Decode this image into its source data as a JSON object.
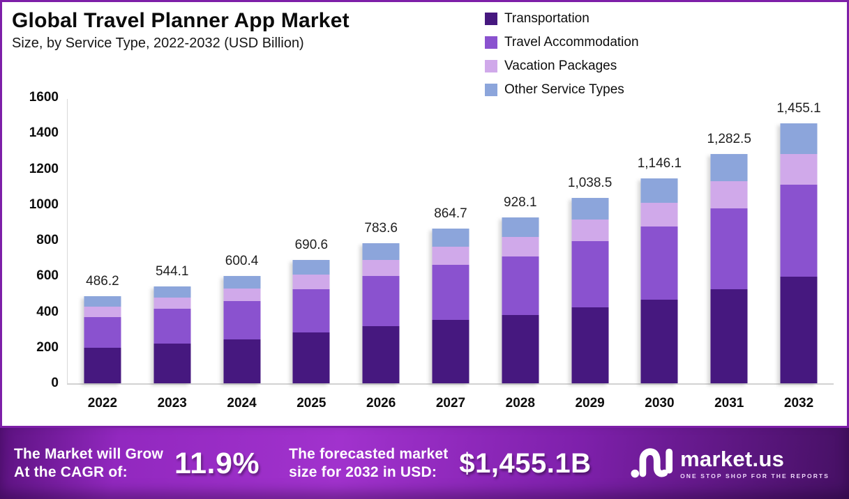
{
  "title": "Global Travel Planner App Market",
  "subtitle": "Size, by Service Type, 2022-2032 (USD Billion)",
  "legend": [
    {
      "label": "Transportation",
      "color": "#46187f"
    },
    {
      "label": "Travel Accommodation",
      "color": "#8a52cf"
    },
    {
      "label": "Vacation Packages",
      "color": "#d0a9ea"
    },
    {
      "label": "Other Service Types",
      "color": "#8ca5db"
    }
  ],
  "chart_data": {
    "type": "bar",
    "stacked": true,
    "title": "Global Travel Planner App Market Size, by Service Type, 2022-2032 (USD Billion)",
    "categories": [
      "2022",
      "2023",
      "2024",
      "2025",
      "2026",
      "2027",
      "2028",
      "2029",
      "2030",
      "2031",
      "2032"
    ],
    "series": [
      {
        "name": "Transportation",
        "color": "#46187f",
        "values": [
          199.3,
          223.1,
          246.2,
          283.1,
          321.3,
          354.5,
          380.5,
          425.8,
          469.9,
          525.8,
          596.6
        ]
      },
      {
        "name": "Travel Accommodation",
        "color": "#8a52cf",
        "values": [
          172.6,
          193.2,
          213.1,
          245.2,
          278.2,
          307.0,
          329.5,
          368.7,
          406.9,
          455.3,
          516.6
        ]
      },
      {
        "name": "Vacation Packages",
        "color": "#d0a9ea",
        "values": [
          57.4,
          64.2,
          70.8,
          81.5,
          92.5,
          102.0,
          109.5,
          122.5,
          135.2,
          151.3,
          171.7
        ]
      },
      {
        "name": "Other Service Types",
        "color": "#8ca5db",
        "values": [
          56.9,
          63.6,
          70.3,
          80.8,
          91.6,
          101.2,
          108.6,
          121.5,
          134.1,
          150.1,
          170.2
        ]
      }
    ],
    "totals": [
      486.2,
      544.1,
      600.4,
      690.6,
      783.6,
      864.7,
      928.1,
      1038.5,
      1146.1,
      1282.5,
      1455.1
    ],
    "total_labels": [
      "486.2",
      "544.1",
      "600.4",
      "690.6",
      "783.6",
      "864.7",
      "928.1",
      "1,038.5",
      "1,146.1",
      "1,282.5",
      "1,455.1"
    ],
    "ylabel": "",
    "xlabel": "",
    "ylim": [
      0,
      1600
    ],
    "yticks": [
      0,
      200,
      400,
      600,
      800,
      1000,
      1200,
      1400,
      1600
    ],
    "grid": false,
    "legend_position": "top-right"
  },
  "footer": {
    "cagr_label_line1": "The Market will Grow",
    "cagr_label_line2": "At the CAGR of:",
    "cagr_value": "11.9%",
    "forecast_label_line1": "The forecasted market",
    "forecast_label_line2": "size for 2032 in USD:",
    "forecast_value": "$1,455.1B",
    "brand": {
      "name": "market.us",
      "tagline": "ONE STOP SHOP FOR THE REPORTS"
    }
  }
}
